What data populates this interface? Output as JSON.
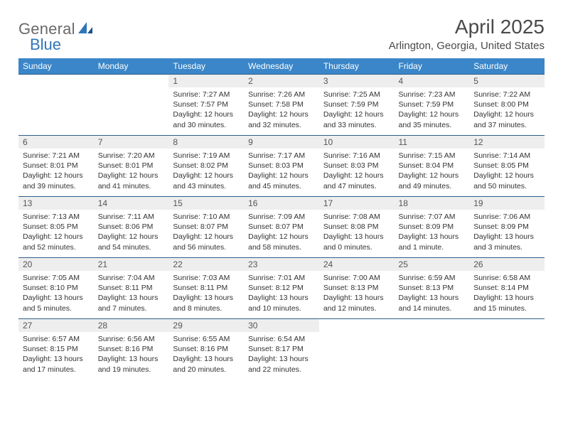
{
  "brand": {
    "word1": "General",
    "word2": "Blue"
  },
  "title": "April 2025",
  "subtitle": "Arlington, Georgia, United States",
  "colors": {
    "header_bg": "#3a86c8",
    "header_text": "#ffffff",
    "row_border": "#2f5f8a",
    "daynum_bg": "#eeeeee",
    "body_text": "#333333",
    "brand_gray": "#6a6a6a",
    "brand_blue": "#2f76b9"
  },
  "weekdays": [
    "Sunday",
    "Monday",
    "Tuesday",
    "Wednesday",
    "Thursday",
    "Friday",
    "Saturday"
  ],
  "weeks": [
    [
      null,
      null,
      {
        "n": "1",
        "sr": "Sunrise: 7:27 AM",
        "ss": "Sunset: 7:57 PM",
        "d1": "Daylight: 12 hours",
        "d2": "and 30 minutes."
      },
      {
        "n": "2",
        "sr": "Sunrise: 7:26 AM",
        "ss": "Sunset: 7:58 PM",
        "d1": "Daylight: 12 hours",
        "d2": "and 32 minutes."
      },
      {
        "n": "3",
        "sr": "Sunrise: 7:25 AM",
        "ss": "Sunset: 7:59 PM",
        "d1": "Daylight: 12 hours",
        "d2": "and 33 minutes."
      },
      {
        "n": "4",
        "sr": "Sunrise: 7:23 AM",
        "ss": "Sunset: 7:59 PM",
        "d1": "Daylight: 12 hours",
        "d2": "and 35 minutes."
      },
      {
        "n": "5",
        "sr": "Sunrise: 7:22 AM",
        "ss": "Sunset: 8:00 PM",
        "d1": "Daylight: 12 hours",
        "d2": "and 37 minutes."
      }
    ],
    [
      {
        "n": "6",
        "sr": "Sunrise: 7:21 AM",
        "ss": "Sunset: 8:01 PM",
        "d1": "Daylight: 12 hours",
        "d2": "and 39 minutes."
      },
      {
        "n": "7",
        "sr": "Sunrise: 7:20 AM",
        "ss": "Sunset: 8:01 PM",
        "d1": "Daylight: 12 hours",
        "d2": "and 41 minutes."
      },
      {
        "n": "8",
        "sr": "Sunrise: 7:19 AM",
        "ss": "Sunset: 8:02 PM",
        "d1": "Daylight: 12 hours",
        "d2": "and 43 minutes."
      },
      {
        "n": "9",
        "sr": "Sunrise: 7:17 AM",
        "ss": "Sunset: 8:03 PM",
        "d1": "Daylight: 12 hours",
        "d2": "and 45 minutes."
      },
      {
        "n": "10",
        "sr": "Sunrise: 7:16 AM",
        "ss": "Sunset: 8:03 PM",
        "d1": "Daylight: 12 hours",
        "d2": "and 47 minutes."
      },
      {
        "n": "11",
        "sr": "Sunrise: 7:15 AM",
        "ss": "Sunset: 8:04 PM",
        "d1": "Daylight: 12 hours",
        "d2": "and 49 minutes."
      },
      {
        "n": "12",
        "sr": "Sunrise: 7:14 AM",
        "ss": "Sunset: 8:05 PM",
        "d1": "Daylight: 12 hours",
        "d2": "and 50 minutes."
      }
    ],
    [
      {
        "n": "13",
        "sr": "Sunrise: 7:13 AM",
        "ss": "Sunset: 8:05 PM",
        "d1": "Daylight: 12 hours",
        "d2": "and 52 minutes."
      },
      {
        "n": "14",
        "sr": "Sunrise: 7:11 AM",
        "ss": "Sunset: 8:06 PM",
        "d1": "Daylight: 12 hours",
        "d2": "and 54 minutes."
      },
      {
        "n": "15",
        "sr": "Sunrise: 7:10 AM",
        "ss": "Sunset: 8:07 PM",
        "d1": "Daylight: 12 hours",
        "d2": "and 56 minutes."
      },
      {
        "n": "16",
        "sr": "Sunrise: 7:09 AM",
        "ss": "Sunset: 8:07 PM",
        "d1": "Daylight: 12 hours",
        "d2": "and 58 minutes."
      },
      {
        "n": "17",
        "sr": "Sunrise: 7:08 AM",
        "ss": "Sunset: 8:08 PM",
        "d1": "Daylight: 13 hours",
        "d2": "and 0 minutes."
      },
      {
        "n": "18",
        "sr": "Sunrise: 7:07 AM",
        "ss": "Sunset: 8:09 PM",
        "d1": "Daylight: 13 hours",
        "d2": "and 1 minute."
      },
      {
        "n": "19",
        "sr": "Sunrise: 7:06 AM",
        "ss": "Sunset: 8:09 PM",
        "d1": "Daylight: 13 hours",
        "d2": "and 3 minutes."
      }
    ],
    [
      {
        "n": "20",
        "sr": "Sunrise: 7:05 AM",
        "ss": "Sunset: 8:10 PM",
        "d1": "Daylight: 13 hours",
        "d2": "and 5 minutes."
      },
      {
        "n": "21",
        "sr": "Sunrise: 7:04 AM",
        "ss": "Sunset: 8:11 PM",
        "d1": "Daylight: 13 hours",
        "d2": "and 7 minutes."
      },
      {
        "n": "22",
        "sr": "Sunrise: 7:03 AM",
        "ss": "Sunset: 8:11 PM",
        "d1": "Daylight: 13 hours",
        "d2": "and 8 minutes."
      },
      {
        "n": "23",
        "sr": "Sunrise: 7:01 AM",
        "ss": "Sunset: 8:12 PM",
        "d1": "Daylight: 13 hours",
        "d2": "and 10 minutes."
      },
      {
        "n": "24",
        "sr": "Sunrise: 7:00 AM",
        "ss": "Sunset: 8:13 PM",
        "d1": "Daylight: 13 hours",
        "d2": "and 12 minutes."
      },
      {
        "n": "25",
        "sr": "Sunrise: 6:59 AM",
        "ss": "Sunset: 8:13 PM",
        "d1": "Daylight: 13 hours",
        "d2": "and 14 minutes."
      },
      {
        "n": "26",
        "sr": "Sunrise: 6:58 AM",
        "ss": "Sunset: 8:14 PM",
        "d1": "Daylight: 13 hours",
        "d2": "and 15 minutes."
      }
    ],
    [
      {
        "n": "27",
        "sr": "Sunrise: 6:57 AM",
        "ss": "Sunset: 8:15 PM",
        "d1": "Daylight: 13 hours",
        "d2": "and 17 minutes."
      },
      {
        "n": "28",
        "sr": "Sunrise: 6:56 AM",
        "ss": "Sunset: 8:16 PM",
        "d1": "Daylight: 13 hours",
        "d2": "and 19 minutes."
      },
      {
        "n": "29",
        "sr": "Sunrise: 6:55 AM",
        "ss": "Sunset: 8:16 PM",
        "d1": "Daylight: 13 hours",
        "d2": "and 20 minutes."
      },
      {
        "n": "30",
        "sr": "Sunrise: 6:54 AM",
        "ss": "Sunset: 8:17 PM",
        "d1": "Daylight: 13 hours",
        "d2": "and 22 minutes."
      },
      null,
      null,
      null
    ]
  ]
}
